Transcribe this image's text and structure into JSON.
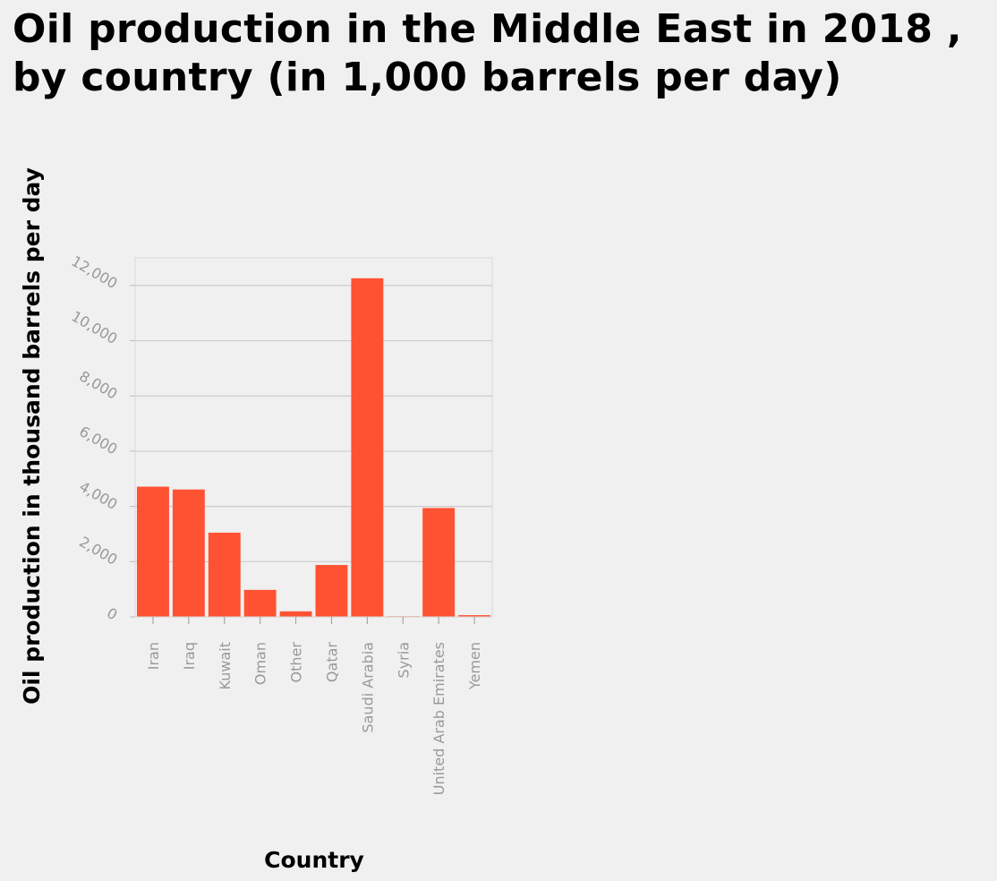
{
  "chart_data": {
    "type": "bar",
    "title": "Oil production in the Middle East in 2018 , by country (in 1,000 barrels per day)",
    "xlabel": "Country",
    "ylabel": "Oil production in thousand barrels per day",
    "categories": [
      "Iran",
      "Iraq",
      "Kuwait",
      "Oman",
      "Other",
      "Qatar",
      "Saudi Arabia",
      "Syria",
      "United Arab Emirates",
      "Yemen"
    ],
    "values": [
      4715,
      4613,
      3049,
      978,
      200,
      1879,
      12261,
      24,
      3942,
      63
    ],
    "y_ticks": [
      "0",
      "2,000",
      "4,000",
      "6,000",
      "8,000",
      "10,000",
      "12,000"
    ],
    "ylim": [
      0,
      13000
    ],
    "grid": true,
    "bar_color": "#ff5233",
    "grid_color": "#cccccc",
    "background_color": "#f0f0f0"
  }
}
